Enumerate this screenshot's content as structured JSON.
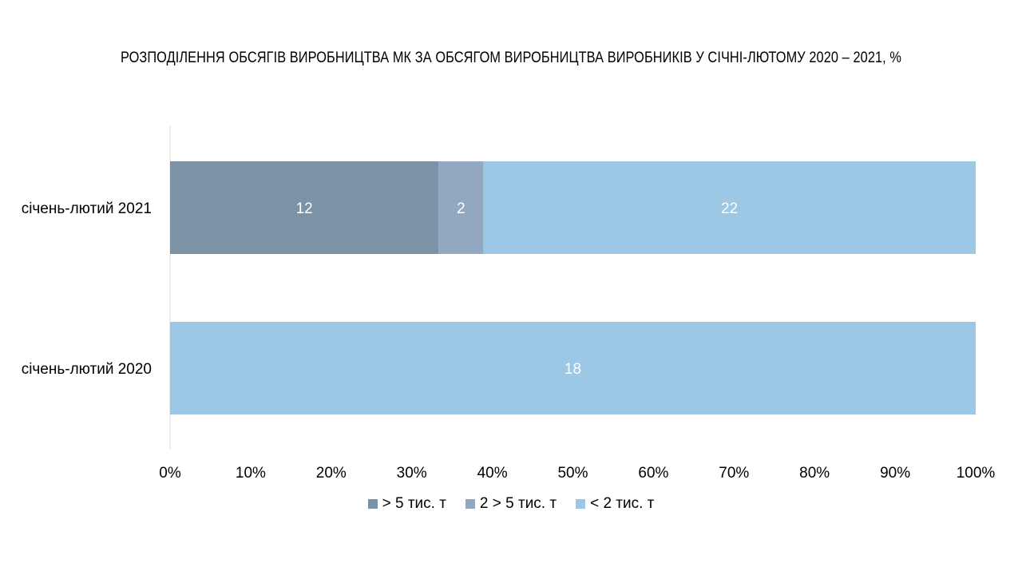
{
  "chart_data": {
    "type": "bar",
    "orientation": "horizontal",
    "stacked": "percent",
    "title": "РОЗПОДІЛЕННЯ ОБСЯГІВ ВИРОБНИЦТВА МК ЗА ОБСЯГОМ ВИРОБНИЦТВА ВИРОБНИКІВ У СІЧНІ-ЛЮТОМУ 2020 – 2021, %",
    "categories": [
      "січень-лютий 2021",
      "січень-лютий 2020"
    ],
    "series": [
      {
        "name": "> 5 тис. т",
        "color": "#7b92a7",
        "values": [
          12,
          0
        ],
        "labels": [
          "12",
          ""
        ]
      },
      {
        "name": "2 > 5 тис. т",
        "color": "#92a8c0",
        "values": [
          2,
          0
        ],
        "labels": [
          "2",
          ""
        ]
      },
      {
        "name": "< 2 тис. т",
        "color": "#9dc8e5",
        "values": [
          22,
          18
        ],
        "labels": [
          "22",
          "18"
        ]
      }
    ],
    "xlim": [
      0,
      100
    ],
    "x_ticks": [
      "0%",
      "10%",
      "20%",
      "30%",
      "40%",
      "50%",
      "60%",
      "70%",
      "80%",
      "90%",
      "100%"
    ],
    "grid": false,
    "legend_position": "bottom"
  }
}
